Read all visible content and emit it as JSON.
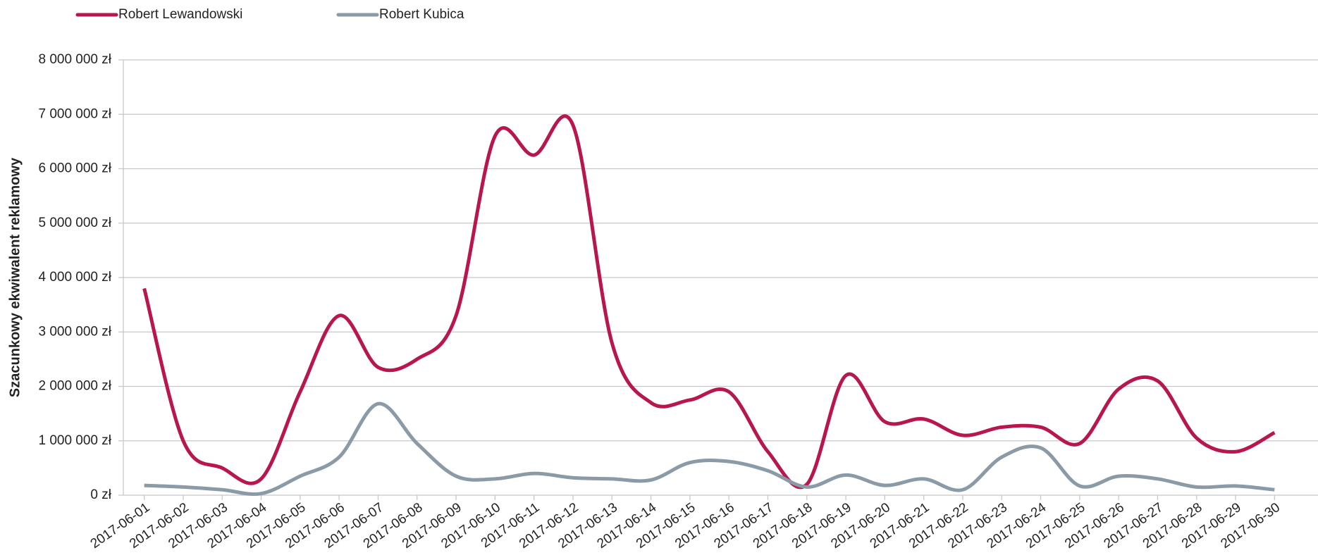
{
  "chart_data": {
    "type": "line",
    "y_label": "Szacunkowy ekwiwalent  reklamowy",
    "categories": [
      "2017-06-01",
      "2017-06-02",
      "2017-06-03",
      "2017-06-04",
      "2017-06-05",
      "2017-06-06",
      "2017-06-07",
      "2017-06-08",
      "2017-06-09",
      "2017-06-10",
      "2017-06-11",
      "2017-06-12",
      "2017-06-13",
      "2017-06-14",
      "2017-06-15",
      "2017-06-16",
      "2017-06-17",
      "2017-06-18",
      "2017-06-19",
      "2017-06-20",
      "2017-06-21",
      "2017-06-22",
      "2017-06-23",
      "2017-06-24",
      "2017-06-25",
      "2017-06-26",
      "2017-06-27",
      "2017-06-28",
      "2017-06-29",
      "2017-06-30"
    ],
    "series": [
      {
        "name": "Robert Lewandowski",
        "color": "#b8174c",
        "values": [
          3800000,
          1000000,
          500000,
          300000,
          1900000,
          3300000,
          2350000,
          2500000,
          3300000,
          6600000,
          6250000,
          6800000,
          2800000,
          1700000,
          1750000,
          1900000,
          800000,
          200000,
          2200000,
          1350000,
          1400000,
          1100000,
          1250000,
          1250000,
          950000,
          1950000,
          2100000,
          1050000,
          800000,
          1150000
        ]
      },
      {
        "name": "Robert Kubica",
        "color": "#8a9aa6",
        "values": [
          180000,
          150000,
          100000,
          30000,
          350000,
          700000,
          1680000,
          950000,
          350000,
          300000,
          400000,
          320000,
          300000,
          280000,
          600000,
          620000,
          450000,
          150000,
          370000,
          180000,
          300000,
          100000,
          700000,
          870000,
          170000,
          350000,
          300000,
          150000,
          170000,
          100000
        ]
      }
    ],
    "ylim": [
      0,
      8000000
    ],
    "yticks": [
      {
        "value": 0,
        "label": "0 zł"
      },
      {
        "value": 1000000,
        "label": "1 000 000 zł"
      },
      {
        "value": 2000000,
        "label": "2 000 000 zł"
      },
      {
        "value": 3000000,
        "label": "3 000 000 zł"
      },
      {
        "value": 4000000,
        "label": "4 000 000 zł"
      },
      {
        "value": 5000000,
        "label": "5 000 000 zł"
      },
      {
        "value": 6000000,
        "label": "6 000 000 zł"
      },
      {
        "value": 7000000,
        "label": "7 000 000 zł"
      },
      {
        "value": 8000000,
        "label": "8 000 000 zł"
      }
    ],
    "grid": true,
    "legend": "top"
  }
}
